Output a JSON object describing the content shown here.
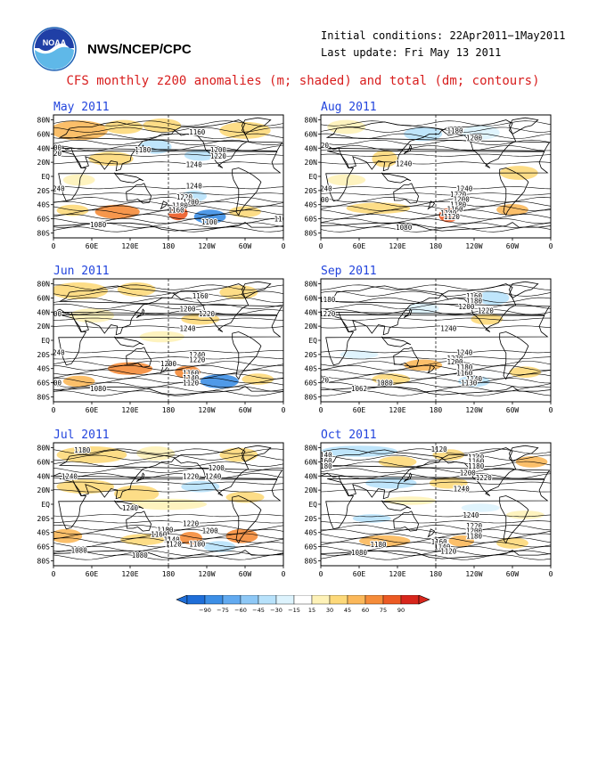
{
  "header": {
    "org_label": "NWS/NCEP/CPC",
    "initial_conditions": "Initial conditions: 22Apr2011−1May2011",
    "last_update": "Last update: Fri May 13 2011",
    "main_title": "CFS monthly z200 anomalies (m; shaded) and total (dm; contours)",
    "logo_icon": "noaa-logo-icon",
    "logo_text": "NOAA"
  },
  "axes": {
    "lat_labels": [
      "80N",
      "60N",
      "40N",
      "20N",
      "EQ",
      "20S",
      "40S",
      "60S",
      "80S"
    ],
    "lon_labels": [
      "0",
      "60E",
      "120E",
      "180",
      "120W",
      "60W",
      "0"
    ]
  },
  "colors": {
    "neg90": "#1f6ed8",
    "neg75": "#3d8fe6",
    "neg60": "#62aaf0",
    "neg45": "#8ec8f6",
    "neg30": "#b8e2fb",
    "neg15": "#ddf3fd",
    "pos15": "#fef2b8",
    "pos30": "#fdd97a",
    "pos45": "#fbb85a",
    "pos60": "#f58c3a",
    "pos75": "#ec5a24",
    "pos90": "#d8261c",
    "contour": "#000000",
    "land": "#000000"
  },
  "colorbar": {
    "ticks": [
      "−90",
      "−75",
      "−60",
      "−45",
      "−30",
      "−15",
      "15",
      "30",
      "45",
      "60",
      "75",
      "90"
    ]
  },
  "maps": [
    {
      "title": "May 2011",
      "contours": [
        {
          "value": "1180",
          "lon": 140,
          "lat": 38
        },
        {
          "value": "1160",
          "lon": 225,
          "lat": 63
        },
        {
          "value": "1200",
          "lon": 258,
          "lat": 38
        },
        {
          "value": "1220",
          "lon": 258,
          "lat": 29
        },
        {
          "value": "1240",
          "lon": 220,
          "lat": 17
        },
        {
          "value": "1220",
          "lon": 0,
          "lat": 33
        },
        {
          "value": "1200",
          "lon": 0,
          "lat": 41
        },
        {
          "value": "1240",
          "lon": 5,
          "lat": -17
        },
        {
          "value": "1240",
          "lon": 220,
          "lat": -13
        },
        {
          "value": "1220",
          "lon": 205,
          "lat": -29
        },
        {
          "value": "1200",
          "lon": 215,
          "lat": -36
        },
        {
          "value": "1180",
          "lon": 198,
          "lat": -41
        },
        {
          "value": "1160",
          "lon": 192,
          "lat": -47
        },
        {
          "value": "1100",
          "lon": 244,
          "lat": -64
        },
        {
          "value": "1100",
          "lon": -2,
          "lat": -60
        },
        {
          "value": "1080",
          "lon": 70,
          "lat": -68
        }
      ],
      "anomalies": [
        {
          "lon": 40,
          "lat": 65,
          "rx": 45,
          "ry": 14,
          "level": "pos45"
        },
        {
          "lon": 110,
          "lat": 70,
          "rx": 30,
          "ry": 10,
          "level": "pos30"
        },
        {
          "lon": 170,
          "lat": 72,
          "rx": 30,
          "ry": 10,
          "level": "pos30"
        },
        {
          "lon": 300,
          "lat": 65,
          "rx": 40,
          "ry": 12,
          "level": "pos30"
        },
        {
          "lon": 160,
          "lat": 42,
          "rx": 25,
          "ry": 10,
          "level": "neg30"
        },
        {
          "lon": 90,
          "lat": 25,
          "rx": 35,
          "ry": 10,
          "level": "pos30"
        },
        {
          "lon": 230,
          "lat": 30,
          "rx": 25,
          "ry": 8,
          "level": "neg30"
        },
        {
          "lon": 40,
          "lat": -5,
          "rx": 25,
          "ry": 8,
          "level": "pos15"
        },
        {
          "lon": 220,
          "lat": -28,
          "rx": 20,
          "ry": 8,
          "level": "neg30"
        },
        {
          "lon": 100,
          "lat": -50,
          "rx": 35,
          "ry": 10,
          "level": "pos60"
        },
        {
          "lon": 30,
          "lat": -48,
          "rx": 25,
          "ry": 8,
          "level": "pos30"
        },
        {
          "lon": 195,
          "lat": -52,
          "rx": 15,
          "ry": 10,
          "level": "pos75"
        },
        {
          "lon": 245,
          "lat": -57,
          "rx": 25,
          "ry": 10,
          "level": "neg75"
        },
        {
          "lon": 300,
          "lat": -50,
          "rx": 25,
          "ry": 8,
          "level": "pos30"
        }
      ]
    },
    {
      "title": "Jun 2011",
      "contours": [
        {
          "value": "1160",
          "lon": 230,
          "lat": 63
        },
        {
          "value": "1200",
          "lon": 210,
          "lat": 45
        },
        {
          "value": "1220",
          "lon": 240,
          "lat": 38
        },
        {
          "value": "1240",
          "lon": 210,
          "lat": 17
        },
        {
          "value": "1200",
          "lon": 0,
          "lat": 38
        },
        {
          "value": "1240",
          "lon": 5,
          "lat": -17
        },
        {
          "value": "1240",
          "lon": 225,
          "lat": -20
        },
        {
          "value": "1220",
          "lon": 225,
          "lat": -27
        },
        {
          "value": "1200",
          "lon": 180,
          "lat": -33
        },
        {
          "value": "1160",
          "lon": 215,
          "lat": -46
        },
        {
          "value": "1140",
          "lon": 215,
          "lat": -53
        },
        {
          "value": "1120",
          "lon": 215,
          "lat": -60
        },
        {
          "value": "1100",
          "lon": 0,
          "lat": -60
        },
        {
          "value": "1080",
          "lon": 70,
          "lat": -68
        }
      ],
      "anomalies": [
        {
          "lon": 40,
          "lat": 70,
          "rx": 45,
          "ry": 12,
          "level": "pos30"
        },
        {
          "lon": 130,
          "lat": 72,
          "rx": 30,
          "ry": 10,
          "level": "pos30"
        },
        {
          "lon": 290,
          "lat": 68,
          "rx": 30,
          "ry": 10,
          "level": "pos30"
        },
        {
          "lon": 60,
          "lat": 35,
          "rx": 35,
          "ry": 10,
          "level": "pos15"
        },
        {
          "lon": 230,
          "lat": 30,
          "rx": 30,
          "ry": 8,
          "level": "pos30"
        },
        {
          "lon": 170,
          "lat": 5,
          "rx": 35,
          "ry": 8,
          "level": "pos15"
        },
        {
          "lon": 120,
          "lat": -40,
          "rx": 35,
          "ry": 9,
          "level": "pos60"
        },
        {
          "lon": 40,
          "lat": -58,
          "rx": 25,
          "ry": 8,
          "level": "pos45"
        },
        {
          "lon": 210,
          "lat": -45,
          "rx": 20,
          "ry": 9,
          "level": "pos60"
        },
        {
          "lon": 260,
          "lat": -58,
          "rx": 30,
          "ry": 10,
          "level": "neg75"
        },
        {
          "lon": 320,
          "lat": -55,
          "rx": 25,
          "ry": 8,
          "level": "pos30"
        }
      ]
    },
    {
      "title": "Jul 2011",
      "contours": [
        {
          "value": "1180",
          "lon": 45,
          "lat": 77
        },
        {
          "value": "1200",
          "lon": 255,
          "lat": 52
        },
        {
          "value": "1220",
          "lon": 215,
          "lat": 40
        },
        {
          "value": "1240",
          "lon": 250,
          "lat": 40
        },
        {
          "value": "1240",
          "lon": 25,
          "lat": 40
        },
        {
          "value": "1240",
          "lon": 120,
          "lat": -5
        },
        {
          "value": "1220",
          "lon": 215,
          "lat": -27
        },
        {
          "value": "1200",
          "lon": 245,
          "lat": -37
        },
        {
          "value": "1180",
          "lon": 175,
          "lat": -36
        },
        {
          "value": "1160",
          "lon": 165,
          "lat": -42
        },
        {
          "value": "1140",
          "lon": 185,
          "lat": -50
        },
        {
          "value": "1120",
          "lon": 188,
          "lat": -56
        },
        {
          "value": "1100",
          "lon": 225,
          "lat": -56
        },
        {
          "value": "1080",
          "lon": 40,
          "lat": -65
        },
        {
          "value": "1080",
          "lon": 135,
          "lat": -72
        }
      ],
      "anomalies": [
        {
          "lon": 60,
          "lat": 70,
          "rx": 55,
          "ry": 12,
          "level": "pos30"
        },
        {
          "lon": 160,
          "lat": 72,
          "rx": 30,
          "ry": 10,
          "level": "pos15"
        },
        {
          "lon": 290,
          "lat": 70,
          "rx": 30,
          "ry": 10,
          "level": "pos30"
        },
        {
          "lon": 50,
          "lat": 25,
          "rx": 45,
          "ry": 10,
          "level": "pos30"
        },
        {
          "lon": 130,
          "lat": 15,
          "rx": 35,
          "ry": 12,
          "level": "pos30"
        },
        {
          "lon": 230,
          "lat": 25,
          "rx": 30,
          "ry": 8,
          "level": "neg30"
        },
        {
          "lon": 180,
          "lat": 0,
          "rx": 60,
          "ry": 8,
          "level": "pos15"
        },
        {
          "lon": 300,
          "lat": 10,
          "rx": 30,
          "ry": 8,
          "level": "pos30"
        },
        {
          "lon": 20,
          "lat": -45,
          "rx": 25,
          "ry": 10,
          "level": "pos45"
        },
        {
          "lon": 140,
          "lat": -50,
          "rx": 35,
          "ry": 8,
          "level": "pos30"
        },
        {
          "lon": 215,
          "lat": -48,
          "rx": 18,
          "ry": 9,
          "level": "pos60"
        },
        {
          "lon": 295,
          "lat": -45,
          "rx": 25,
          "ry": 10,
          "level": "pos60"
        },
        {
          "lon": 260,
          "lat": -60,
          "rx": 25,
          "ry": 8,
          "level": "neg30"
        }
      ]
    },
    {
      "title": "Aug 2011",
      "contours": [
        {
          "value": "1180",
          "lon": 210,
          "lat": 65
        },
        {
          "value": "1200",
          "lon": 240,
          "lat": 55
        },
        {
          "value": "1220",
          "lon": 0,
          "lat": 44
        },
        {
          "value": "1240",
          "lon": 130,
          "lat": 18
        },
        {
          "value": "1240",
          "lon": 5,
          "lat": -17
        },
        {
          "value": "1240",
          "lon": 225,
          "lat": -17
        },
        {
          "value": "1220",
          "lon": 215,
          "lat": -25
        },
        {
          "value": "1200",
          "lon": 0,
          "lat": -33
        },
        {
          "value": "1200",
          "lon": 220,
          "lat": -32
        },
        {
          "value": "1180",
          "lon": 215,
          "lat": -40
        },
        {
          "value": "1160",
          "lon": 210,
          "lat": -46
        },
        {
          "value": "1140",
          "lon": 200,
          "lat": -52
        },
        {
          "value": "1120",
          "lon": 205,
          "lat": -57
        },
        {
          "value": "1080",
          "lon": 130,
          "lat": -72
        }
      ],
      "anomalies": [
        {
          "lon": 40,
          "lat": 70,
          "rx": 30,
          "ry": 10,
          "level": "pos15"
        },
        {
          "lon": 160,
          "lat": 60,
          "rx": 30,
          "ry": 10,
          "level": "neg30"
        },
        {
          "lon": 250,
          "lat": 62,
          "rx": 30,
          "ry": 10,
          "level": "neg15"
        },
        {
          "lon": 100,
          "lat": 25,
          "rx": 20,
          "ry": 12,
          "level": "pos30"
        },
        {
          "lon": 40,
          "lat": -5,
          "rx": 30,
          "ry": 8,
          "level": "pos15"
        },
        {
          "lon": 310,
          "lat": 5,
          "rx": 30,
          "ry": 10,
          "level": "pos30"
        },
        {
          "lon": 90,
          "lat": -45,
          "rx": 50,
          "ry": 8,
          "level": "pos30"
        },
        {
          "lon": 200,
          "lat": -55,
          "rx": 15,
          "ry": 10,
          "level": "pos75"
        },
        {
          "lon": 300,
          "lat": -47,
          "rx": 25,
          "ry": 8,
          "level": "pos45"
        }
      ]
    },
    {
      "title": "Sep 2011",
      "contours": [
        {
          "value": "1180",
          "lon": 10,
          "lat": 58
        },
        {
          "value": "1160",
          "lon": 240,
          "lat": 63
        },
        {
          "value": "1180",
          "lon": 240,
          "lat": 56
        },
        {
          "value": "1200",
          "lon": 228,
          "lat": 48
        },
        {
          "value": "1220",
          "lon": 10,
          "lat": 38
        },
        {
          "value": "1220",
          "lon": 258,
          "lat": 42
        },
        {
          "value": "1240",
          "lon": 200,
          "lat": 17
        },
        {
          "value": "1240",
          "lon": 225,
          "lat": -17
        },
        {
          "value": "1220",
          "lon": 210,
          "lat": -25
        },
        {
          "value": "1200",
          "lon": 210,
          "lat": -30
        },
        {
          "value": "1180",
          "lon": 225,
          "lat": -38
        },
        {
          "value": "1160",
          "lon": 225,
          "lat": -46
        },
        {
          "value": "1140",
          "lon": 240,
          "lat": -54
        },
        {
          "value": "1130",
          "lon": 232,
          "lat": -60
        },
        {
          "value": "1120",
          "lon": 0,
          "lat": -56
        },
        {
          "value": "1080",
          "lon": 100,
          "lat": -60
        },
        {
          "value": "1062",
          "lon": 60,
          "lat": -68
        }
      ],
      "anomalies": [
        {
          "lon": 270,
          "lat": 60,
          "rx": 25,
          "ry": 10,
          "level": "neg30"
        },
        {
          "lon": 160,
          "lat": 45,
          "rx": 25,
          "ry": 8,
          "level": "neg15"
        },
        {
          "lon": 260,
          "lat": 30,
          "rx": 25,
          "ry": 8,
          "level": "pos30"
        },
        {
          "lon": 60,
          "lat": -20,
          "rx": 30,
          "ry": 6,
          "level": "neg15"
        },
        {
          "lon": 160,
          "lat": -35,
          "rx": 30,
          "ry": 8,
          "level": "pos45"
        },
        {
          "lon": 110,
          "lat": -55,
          "rx": 30,
          "ry": 8,
          "level": "pos30"
        },
        {
          "lon": 240,
          "lat": -58,
          "rx": 25,
          "ry": 8,
          "level": "neg30"
        },
        {
          "lon": 320,
          "lat": -45,
          "rx": 25,
          "ry": 8,
          "level": "pos30"
        }
      ]
    },
    {
      "title": "Oct 2011",
      "contours": [
        {
          "value": "1140",
          "lon": 5,
          "lat": 70
        },
        {
          "value": "1160",
          "lon": 5,
          "lat": 62
        },
        {
          "value": "1180",
          "lon": 5,
          "lat": 54
        },
        {
          "value": "1120",
          "lon": 185,
          "lat": 78
        },
        {
          "value": "1140",
          "lon": 243,
          "lat": 67
        },
        {
          "value": "1160",
          "lon": 243,
          "lat": 61
        },
        {
          "value": "1180",
          "lon": 243,
          "lat": 54
        },
        {
          "value": "1200",
          "lon": 230,
          "lat": 45
        },
        {
          "value": "1220",
          "lon": 255,
          "lat": 38
        },
        {
          "value": "1240",
          "lon": 220,
          "lat": 22
        },
        {
          "value": "1240",
          "lon": 235,
          "lat": -15
        },
        {
          "value": "1220",
          "lon": 240,
          "lat": -30
        },
        {
          "value": "1200",
          "lon": 240,
          "lat": -37
        },
        {
          "value": "1180",
          "lon": 240,
          "lat": -45
        },
        {
          "value": "1180",
          "lon": 90,
          "lat": -57
        },
        {
          "value": "1160",
          "lon": 185,
          "lat": -53
        },
        {
          "value": "1140",
          "lon": 190,
          "lat": -60
        },
        {
          "value": "1120",
          "lon": 200,
          "lat": -66
        },
        {
          "value": "1080",
          "lon": 60,
          "lat": -68
        }
      ],
      "anomalies": [
        {
          "lon": 60,
          "lat": 75,
          "rx": 60,
          "ry": 8,
          "level": "neg30"
        },
        {
          "lon": 120,
          "lat": 60,
          "rx": 30,
          "ry": 8,
          "level": "pos30"
        },
        {
          "lon": 200,
          "lat": 70,
          "rx": 25,
          "ry": 8,
          "level": "pos30"
        },
        {
          "lon": 330,
          "lat": 60,
          "rx": 25,
          "ry": 8,
          "level": "pos45"
        },
        {
          "lon": 110,
          "lat": 30,
          "rx": 40,
          "ry": 8,
          "level": "neg30"
        },
        {
          "lon": 200,
          "lat": 30,
          "rx": 30,
          "ry": 8,
          "level": "pos30"
        },
        {
          "lon": 140,
          "lat": 5,
          "rx": 40,
          "ry": 6,
          "level": "pos15"
        },
        {
          "lon": 250,
          "lat": -5,
          "rx": 30,
          "ry": 6,
          "level": "neg15"
        },
        {
          "lon": 80,
          "lat": -20,
          "rx": 30,
          "ry": 6,
          "level": "neg30"
        },
        {
          "lon": 320,
          "lat": -15,
          "rx": 30,
          "ry": 6,
          "level": "pos15"
        },
        {
          "lon": 100,
          "lat": -52,
          "rx": 40,
          "ry": 8,
          "level": "pos45"
        },
        {
          "lon": 220,
          "lat": -52,
          "rx": 20,
          "ry": 8,
          "level": "pos45"
        },
        {
          "lon": 300,
          "lat": -55,
          "rx": 25,
          "ry": 8,
          "level": "pos30"
        }
      ]
    }
  ]
}
